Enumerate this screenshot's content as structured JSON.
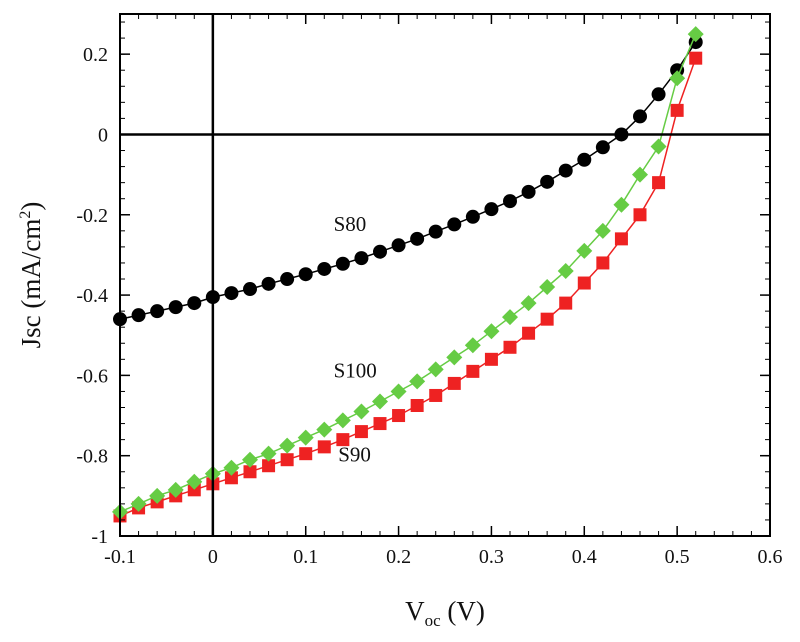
{
  "chart_data": {
    "type": "scatter",
    "title": "",
    "xlabel": "Voc (V)",
    "xlabel_parts": {
      "main": "V",
      "sub": "oc",
      "unit": " (V)"
    },
    "ylabel": "Jsc (mA/cm2)",
    "ylabel_parts": {
      "main": "Jsc (mA/cm",
      "sup": "2",
      "end": ")"
    },
    "xlim": [
      -0.1,
      0.6
    ],
    "ylim": [
      -1.0,
      0.3
    ],
    "xticks": [
      -0.1,
      0,
      0.1,
      0.2,
      0.3,
      0.4,
      0.5,
      0.6
    ],
    "xtick_labels": [
      "-0.1",
      "0",
      "0.1",
      "0.2",
      "0.3",
      "0.4",
      "0.5",
      "0.6"
    ],
    "yticks": [
      -1,
      -0.8,
      -0.6,
      -0.4,
      -0.2,
      0,
      0.2
    ],
    "ytick_labels": [
      "-1",
      "-0.8",
      "-0.6",
      "-0.4",
      "-0.2",
      "0",
      "0.2"
    ],
    "grid": false,
    "reference_lines": {
      "x": 0,
      "y": 0
    },
    "series": [
      {
        "label": "S80",
        "marker": "circle",
        "color": "#000000",
        "x": [
          -0.1,
          -0.08,
          -0.06,
          -0.04,
          -0.02,
          0.0,
          0.02,
          0.04,
          0.06,
          0.08,
          0.1,
          0.12,
          0.14,
          0.16,
          0.18,
          0.2,
          0.22,
          0.24,
          0.26,
          0.28,
          0.3,
          0.32,
          0.34,
          0.36,
          0.38,
          0.4,
          0.42,
          0.44,
          0.46,
          0.48,
          0.5,
          0.52
        ],
        "y": [
          -0.46,
          -0.45,
          -0.44,
          -0.43,
          -0.42,
          -0.405,
          -0.395,
          -0.385,
          -0.372,
          -0.36,
          -0.348,
          -0.335,
          -0.322,
          -0.308,
          -0.292,
          -0.276,
          -0.26,
          -0.242,
          -0.224,
          -0.205,
          -0.186,
          -0.166,
          -0.143,
          -0.118,
          -0.09,
          -0.063,
          -0.032,
          0.0,
          0.045,
          0.1,
          0.16,
          0.23
        ]
      },
      {
        "label": "S90",
        "marker": "square",
        "color": "#ee2222",
        "x": [
          -0.1,
          -0.08,
          -0.06,
          -0.04,
          -0.02,
          0.0,
          0.02,
          0.04,
          0.06,
          0.08,
          0.1,
          0.12,
          0.14,
          0.16,
          0.18,
          0.2,
          0.22,
          0.24,
          0.26,
          0.28,
          0.3,
          0.32,
          0.34,
          0.36,
          0.38,
          0.4,
          0.42,
          0.44,
          0.46,
          0.48,
          0.5,
          0.52
        ],
        "y": [
          -0.95,
          -0.93,
          -0.915,
          -0.9,
          -0.885,
          -0.87,
          -0.855,
          -0.84,
          -0.825,
          -0.81,
          -0.795,
          -0.778,
          -0.76,
          -0.74,
          -0.72,
          -0.7,
          -0.675,
          -0.65,
          -0.62,
          -0.59,
          -0.56,
          -0.53,
          -0.495,
          -0.46,
          -0.42,
          -0.37,
          -0.32,
          -0.26,
          -0.2,
          -0.12,
          0.06,
          0.19
        ]
      },
      {
        "label": "S100",
        "marker": "diamond",
        "color": "#66cc44",
        "x": [
          -0.1,
          -0.08,
          -0.06,
          -0.04,
          -0.02,
          0.0,
          0.02,
          0.04,
          0.06,
          0.08,
          0.1,
          0.12,
          0.14,
          0.16,
          0.18,
          0.2,
          0.22,
          0.24,
          0.26,
          0.28,
          0.3,
          0.32,
          0.34,
          0.36,
          0.38,
          0.4,
          0.42,
          0.44,
          0.46,
          0.48,
          0.5,
          0.52
        ],
        "y": [
          -0.94,
          -0.92,
          -0.9,
          -0.885,
          -0.865,
          -0.845,
          -0.83,
          -0.81,
          -0.795,
          -0.775,
          -0.755,
          -0.735,
          -0.712,
          -0.69,
          -0.665,
          -0.64,
          -0.615,
          -0.585,
          -0.555,
          -0.525,
          -0.49,
          -0.455,
          -0.42,
          -0.38,
          -0.34,
          -0.29,
          -0.24,
          -0.175,
          -0.1,
          -0.03,
          0.14,
          0.25
        ]
      }
    ],
    "annotations": [
      {
        "text": "S80",
        "x": 0.13,
        "y": -0.24
      },
      {
        "text": "S100",
        "x": 0.13,
        "y": -0.605
      },
      {
        "text": "S90",
        "x": 0.135,
        "y": -0.815
      }
    ]
  }
}
